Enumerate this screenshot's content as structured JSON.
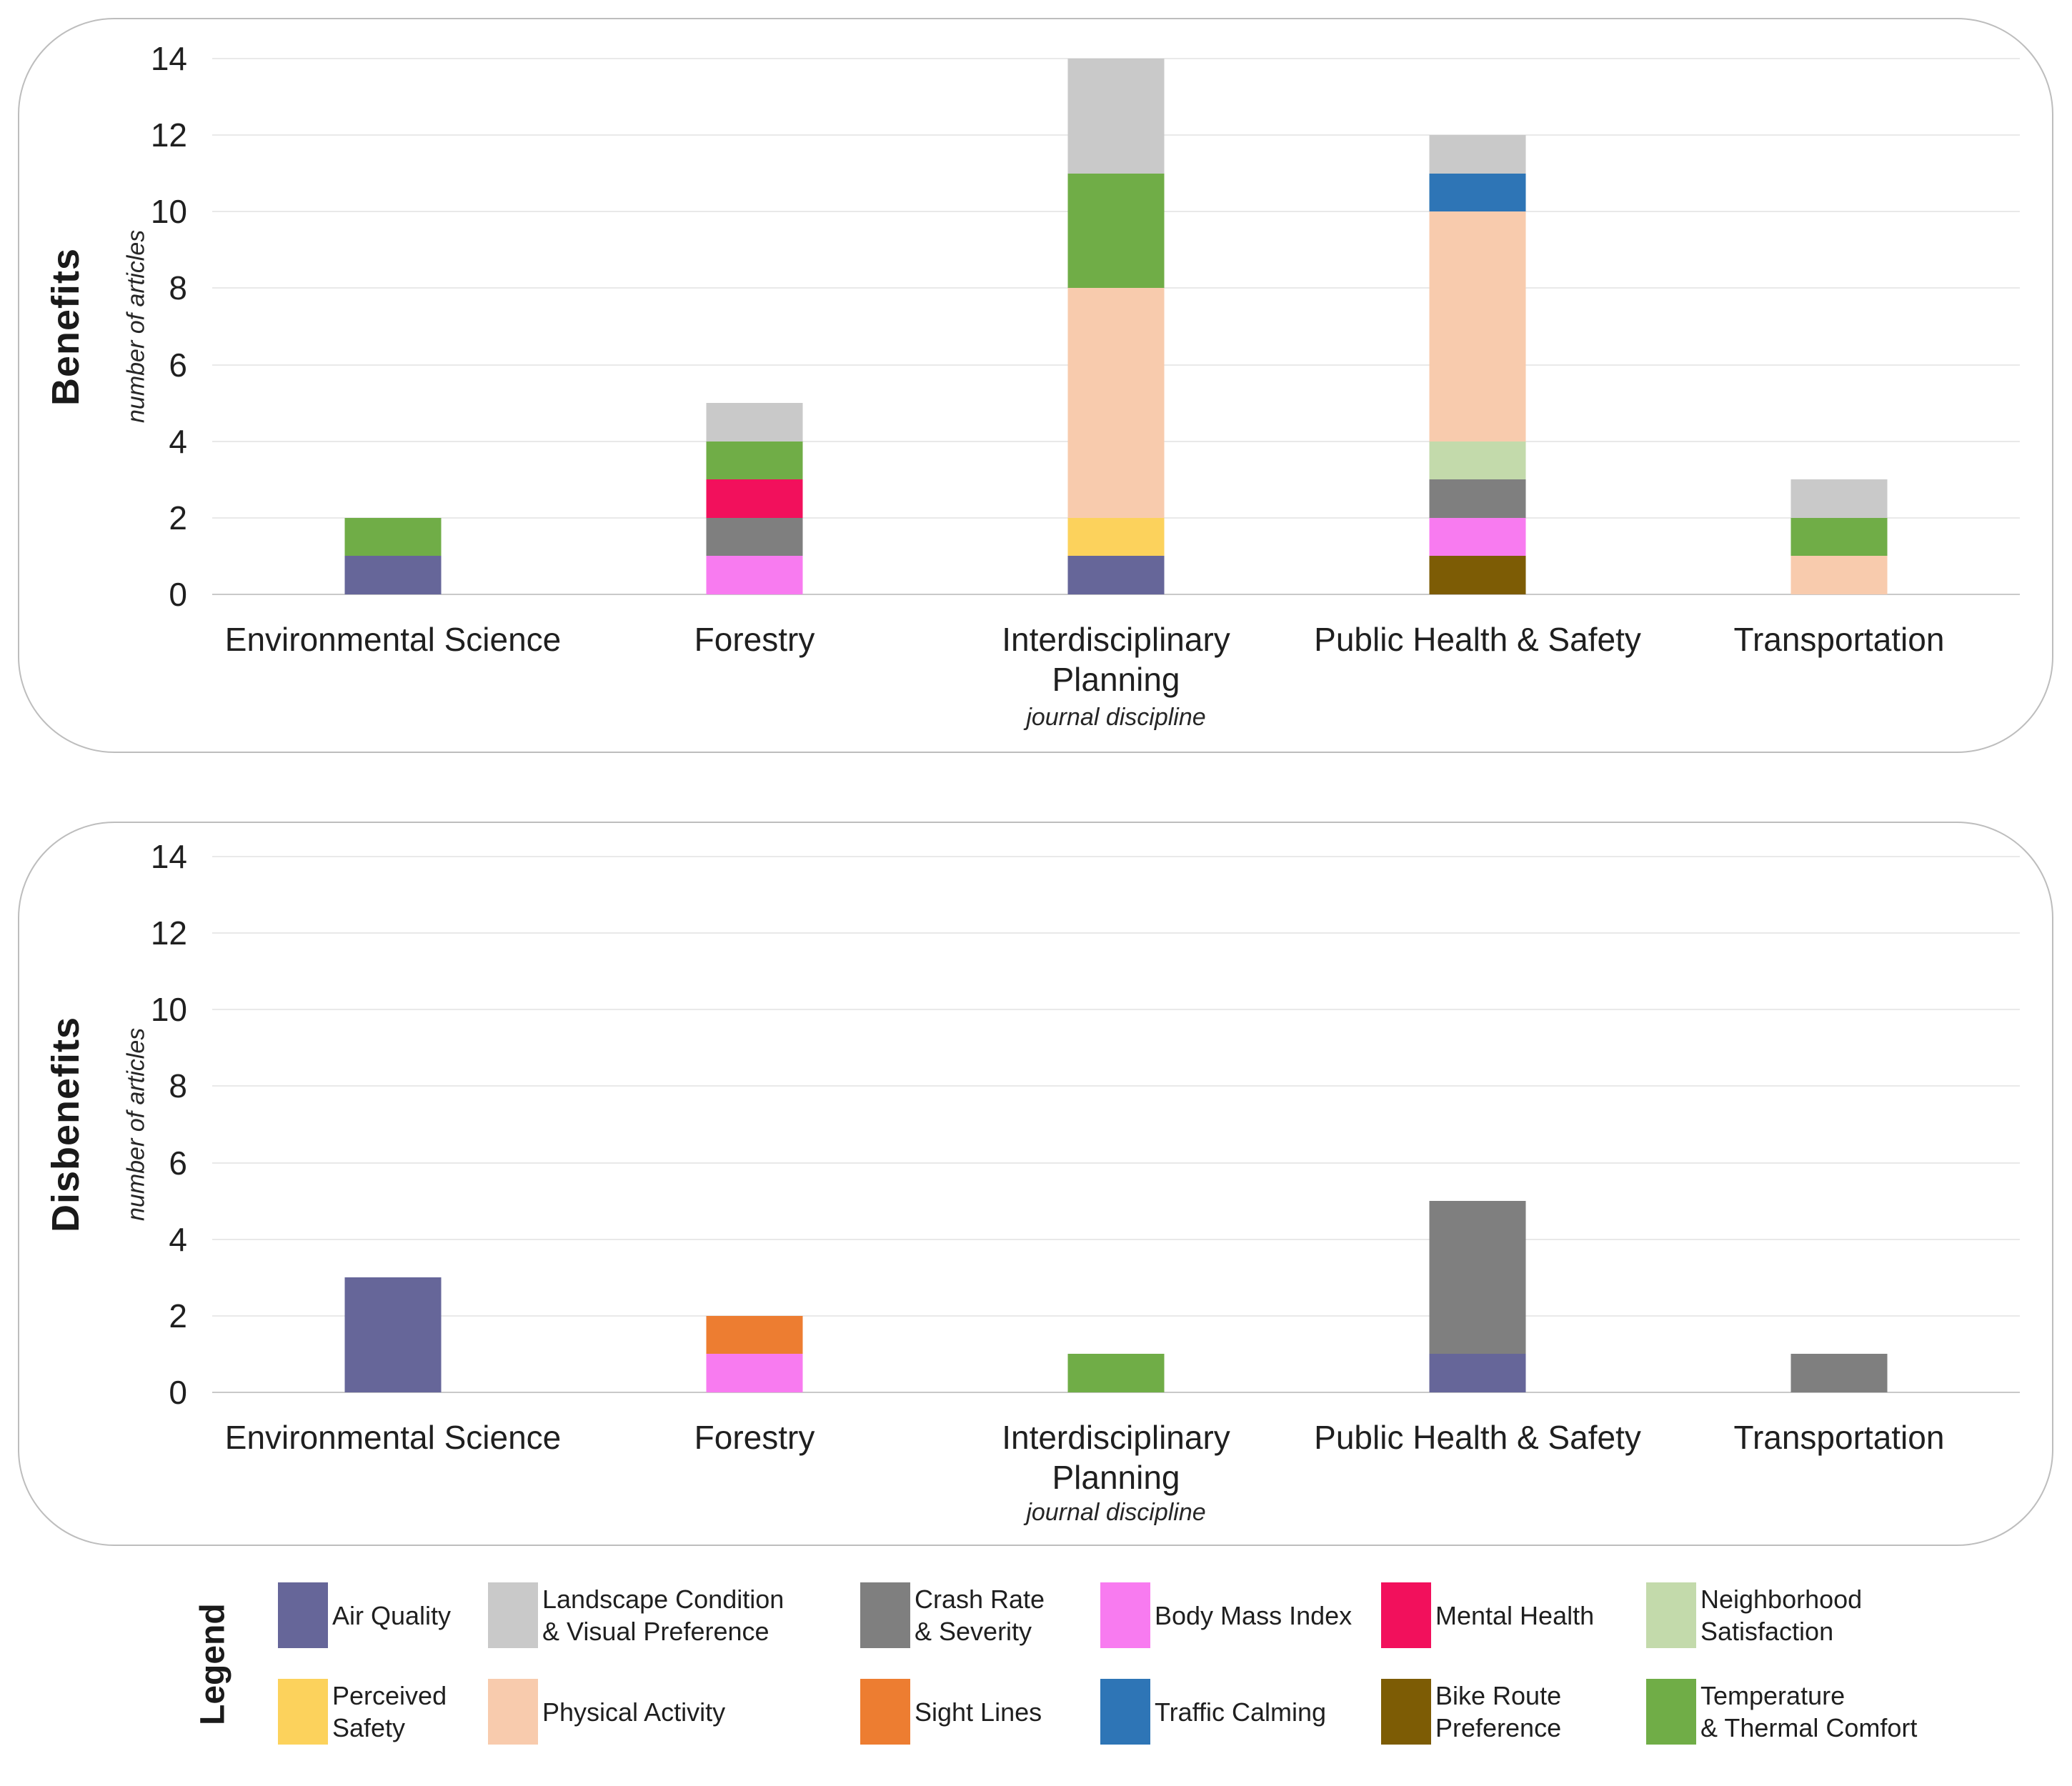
{
  "colors": {
    "air_quality": "#666699",
    "landscape": "#C9C9C9",
    "crash_rate": "#7F7F7F",
    "body_mass_index": "#F87BF0",
    "mental_health": "#F2105C",
    "neighborhood": "#C3DAAB",
    "perceived_safety": "#FCD25C",
    "physical_activity": "#F8CBAD",
    "sight_lines": "#ED7D31",
    "traffic_calming": "#2E75B6",
    "bike_route": "#7D5C05",
    "temperature": "#70AD47",
    "gridline": "#E9E9E9",
    "axis_baseline": "#C9C9C9",
    "panel_border": "#BDBDBD"
  },
  "chart_data": [
    {
      "type": "bar",
      "stacked": true,
      "title": "Benefits",
      "xlabel": "journal discipline",
      "ylabel": "number of articles",
      "ylim": [
        0,
        14
      ],
      "yticks": [
        0,
        2,
        4,
        6,
        8,
        10,
        12,
        14
      ],
      "grid": true,
      "legend_position": "bottom",
      "categories": [
        "Environmental Science",
        "Forestry",
        "Interdisciplinary\nPlanning",
        "Public Health & Safety",
        "Transportation"
      ],
      "series": [
        {
          "key": "air_quality",
          "name": "Air Quality",
          "values": [
            1,
            0,
            1,
            0,
            0
          ]
        },
        {
          "key": "bike_route",
          "name": "Bike Route Preference",
          "values": [
            0,
            0,
            0,
            1,
            0
          ]
        },
        {
          "key": "body_mass_index",
          "name": "Body Mass Index",
          "values": [
            0,
            1,
            0,
            1,
            0
          ]
        },
        {
          "key": "crash_rate",
          "name": "Crash Rate & Severity",
          "values": [
            0,
            1,
            0,
            1,
            0
          ]
        },
        {
          "key": "mental_health",
          "name": "Mental Health",
          "values": [
            0,
            1,
            0,
            0,
            0
          ]
        },
        {
          "key": "neighborhood",
          "name": "Neighborhood Satisfaction",
          "values": [
            0,
            0,
            0,
            1,
            0
          ]
        },
        {
          "key": "perceived_safety",
          "name": "Perceived Safety",
          "values": [
            0,
            0,
            1,
            0,
            0
          ]
        },
        {
          "key": "physical_activity",
          "name": "Physical Activity",
          "values": [
            0,
            0,
            6,
            6,
            1
          ]
        },
        {
          "key": "sight_lines",
          "name": "Sight Lines",
          "values": [
            0,
            0,
            0,
            0,
            0
          ]
        },
        {
          "key": "traffic_calming",
          "name": "Traffic Calming",
          "values": [
            0,
            0,
            0,
            1,
            0
          ]
        },
        {
          "key": "temperature",
          "name": "Temperature & Thermal Comfort",
          "values": [
            1,
            1,
            3,
            0,
            1
          ]
        },
        {
          "key": "landscape",
          "name": "Landscape Condition & Visual Preference",
          "values": [
            0,
            1,
            3,
            1,
            1
          ]
        }
      ]
    },
    {
      "type": "bar",
      "stacked": true,
      "title": "Disbenefits",
      "xlabel": "journal discipline",
      "ylabel": "number of articles",
      "ylim": [
        0,
        14
      ],
      "yticks": [
        0,
        2,
        4,
        6,
        8,
        10,
        12,
        14
      ],
      "grid": true,
      "legend_position": "bottom",
      "categories": [
        "Environmental Science",
        "Forestry",
        "Interdisciplinary\nPlanning",
        "Public Health & Safety",
        "Transportation"
      ],
      "series": [
        {
          "key": "air_quality",
          "name": "Air Quality",
          "values": [
            3,
            0,
            0,
            1,
            0
          ]
        },
        {
          "key": "body_mass_index",
          "name": "Body Mass Index",
          "values": [
            0,
            1,
            0,
            0,
            0
          ]
        },
        {
          "key": "crash_rate",
          "name": "Crash Rate & Severity",
          "values": [
            0,
            0,
            0,
            4,
            1
          ]
        },
        {
          "key": "sight_lines",
          "name": "Sight Lines",
          "values": [
            0,
            1,
            0,
            0,
            0
          ]
        },
        {
          "key": "temperature",
          "name": "Temperature & Thermal Comfort",
          "values": [
            0,
            0,
            1,
            0,
            0
          ]
        }
      ]
    }
  ],
  "legend": {
    "title": "Legend",
    "rows": [
      [
        {
          "key": "air_quality",
          "label": "Air Quality"
        },
        {
          "key": "landscape",
          "label": "Landscape Condition\n& Visual Preference"
        },
        {
          "key": "crash_rate",
          "label": "Crash Rate\n& Severity"
        },
        {
          "key": "body_mass_index",
          "label": "Body Mass Index"
        },
        {
          "key": "mental_health",
          "label": "Mental Health"
        },
        {
          "key": "neighborhood",
          "label": "Neighborhood\nSatisfaction"
        }
      ],
      [
        {
          "key": "perceived_safety",
          "label": "Perceived\nSafety"
        },
        {
          "key": "physical_activity",
          "label": "Physical Activity"
        },
        {
          "key": "sight_lines",
          "label": "Sight Lines"
        },
        {
          "key": "traffic_calming",
          "label": "Traffic Calming"
        },
        {
          "key": "bike_route",
          "label": "Bike Route\nPreference"
        },
        {
          "key": "temperature",
          "label": "Temperature\n& Thermal Comfort"
        }
      ]
    ]
  }
}
